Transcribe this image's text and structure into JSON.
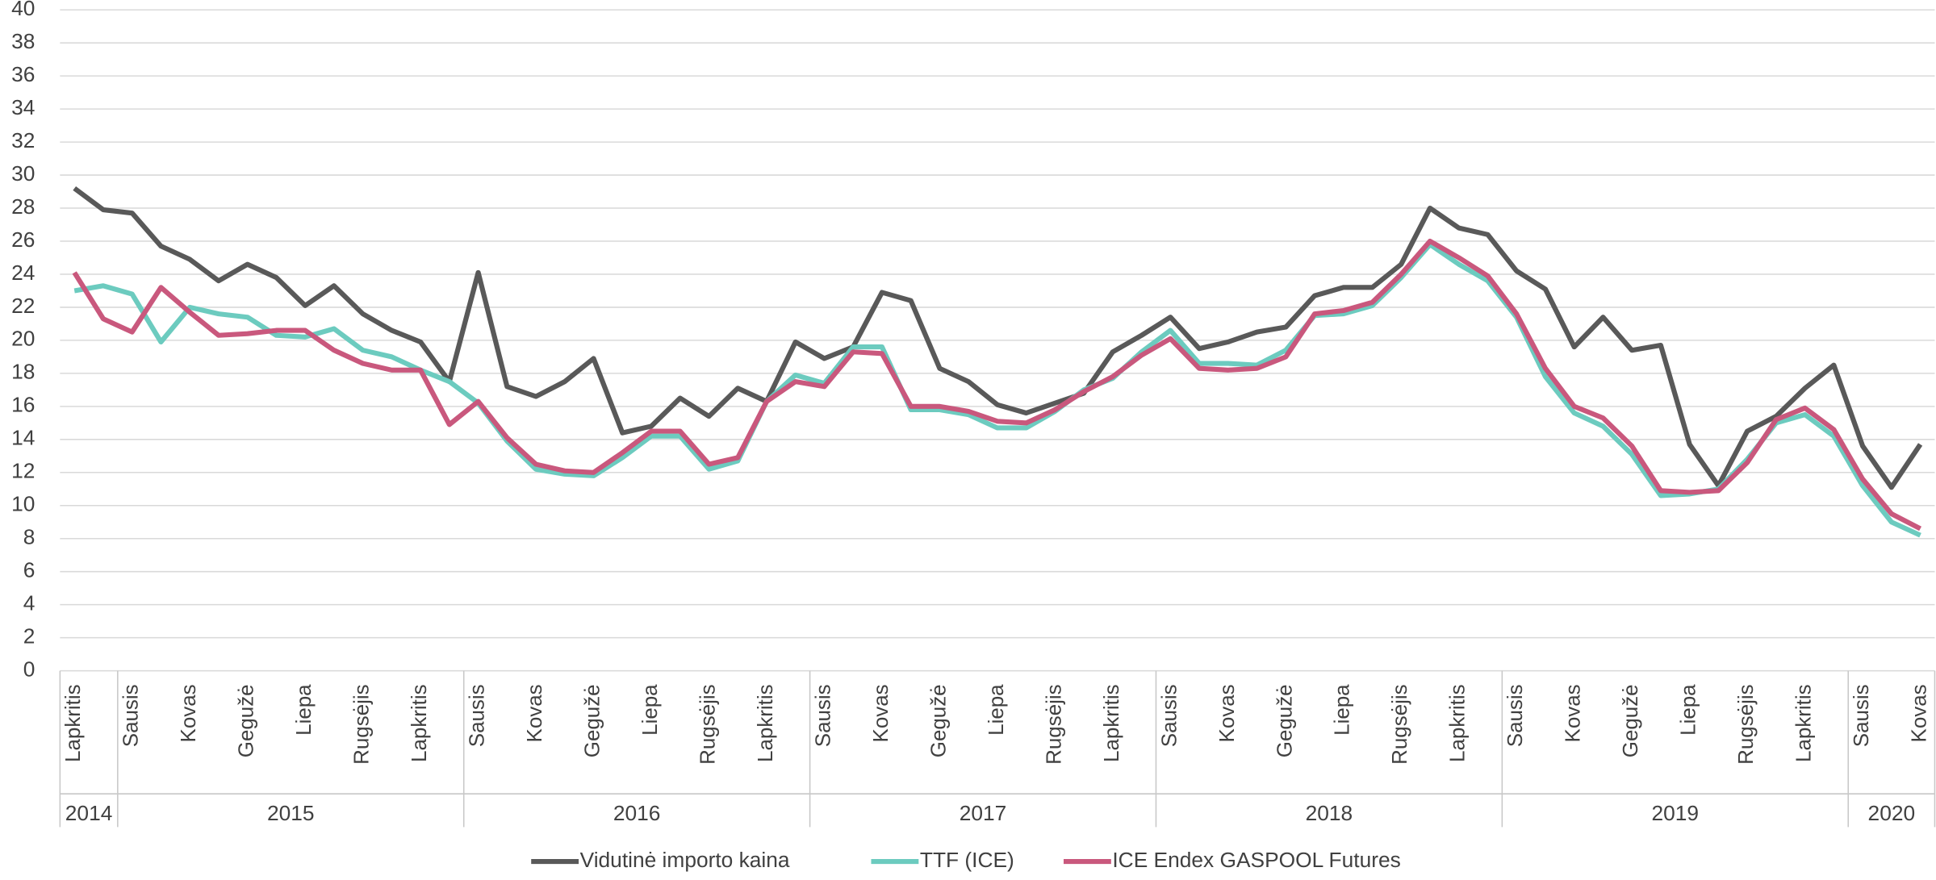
{
  "chart_data": {
    "type": "line",
    "categories": [
      "Lapkritis",
      null,
      "Sausis",
      null,
      "Kovas",
      null,
      "Gegužė",
      null,
      "Liepa",
      null,
      "Rugsėjis",
      null,
      "Lapkritis",
      null,
      "Sausis",
      null,
      "Kovas",
      null,
      "Gegužė",
      null,
      "Liepa",
      null,
      "Rugsėjis",
      null,
      "Lapkritis",
      null,
      "Sausis",
      null,
      "Kovas",
      null,
      "Gegužė",
      null,
      "Liepa",
      null,
      "Rugsėjis",
      null,
      "Lapkritis",
      null,
      "Sausis",
      null,
      "Kovas",
      null,
      "Gegužė",
      null,
      "Liepa",
      null,
      "Rugsėjis",
      null,
      "Lapkritis",
      null,
      "Sausis",
      null,
      "Kovas",
      null,
      "Gegužė",
      null,
      "Liepa",
      null,
      "Rugsėjis",
      null,
      "Lapkritis",
      null,
      "Sausis",
      null,
      "Kovas"
    ],
    "year_groups": [
      {
        "label": "2014",
        "span": 2
      },
      {
        "label": "2015",
        "span": 12
      },
      {
        "label": "2016",
        "span": 12
      },
      {
        "label": "2017",
        "span": 12
      },
      {
        "label": "2018",
        "span": 12
      },
      {
        "label": "2019",
        "span": 12
      },
      {
        "label": "2020",
        "span": 3
      }
    ],
    "series": [
      {
        "name": "Vidutinė importo kaina",
        "color": "#595959",
        "values": [
          29.2,
          27.9,
          27.7,
          25.7,
          24.9,
          23.6,
          24.6,
          23.8,
          22.1,
          23.3,
          21.6,
          20.6,
          19.9,
          17.5,
          24.1,
          17.2,
          16.6,
          17.5,
          18.9,
          14.4,
          14.8,
          16.5,
          15.4,
          17.1,
          16.3,
          19.9,
          18.9,
          19.6,
          22.9,
          22.4,
          18.3,
          17.5,
          16.1,
          15.6,
          16.2,
          16.8,
          19.3,
          20.3,
          21.4,
          19.5,
          19.9,
          20.5,
          20.8,
          22.7,
          23.2,
          23.2,
          24.6,
          28.0,
          26.8,
          26.4,
          24.2,
          23.1,
          19.6,
          21.4,
          19.4,
          19.7,
          13.7,
          11.2,
          14.5,
          15.4,
          17.1,
          18.5,
          13.6,
          11.1,
          13.7
        ]
      },
      {
        "name": "TTF (ICE)",
        "color": "#6ccbbf",
        "values": [
          23.0,
          23.3,
          22.8,
          19.9,
          22.0,
          21.6,
          21.4,
          20.3,
          20.2,
          20.7,
          19.4,
          19.0,
          18.2,
          17.5,
          16.2,
          13.9,
          12.2,
          11.9,
          11.8,
          12.9,
          14.2,
          14.2,
          12.2,
          12.7,
          16.3,
          17.9,
          17.4,
          19.6,
          19.6,
          15.8,
          15.8,
          15.5,
          14.7,
          14.7,
          15.7,
          17.0,
          17.7,
          19.3,
          20.6,
          18.6,
          18.6,
          18.5,
          19.4,
          21.5,
          21.6,
          22.1,
          23.8,
          25.8,
          24.6,
          23.6,
          21.4,
          17.8,
          15.6,
          14.8,
          13.1,
          10.6,
          10.7,
          11.0,
          12.8,
          15.0,
          15.5,
          14.2,
          11.2,
          9.0,
          8.2
        ]
      },
      {
        "name": "ICE Endex GASPOOL Futures",
        "color": "#c9587d",
        "values": [
          24.1,
          21.3,
          20.5,
          23.2,
          21.7,
          20.3,
          20.4,
          20.6,
          20.6,
          19.4,
          18.6,
          18.2,
          18.2,
          14.9,
          16.3,
          14.1,
          12.5,
          12.1,
          12.0,
          13.2,
          14.5,
          14.5,
          12.5,
          12.9,
          16.3,
          17.5,
          17.2,
          19.3,
          19.2,
          16.0,
          16.0,
          15.7,
          15.1,
          15.0,
          15.8,
          16.9,
          17.8,
          19.1,
          20.1,
          18.3,
          18.2,
          18.3,
          19.0,
          21.6,
          21.8,
          22.3,
          24.0,
          26.0,
          25.0,
          23.9,
          21.6,
          18.3,
          16.0,
          15.3,
          13.6,
          10.9,
          10.8,
          10.9,
          12.6,
          15.2,
          15.9,
          14.6,
          11.6,
          9.5,
          8.6
        ]
      }
    ],
    "ylim": [
      0,
      40
    ],
    "yticks": [
      0,
      2,
      4,
      6,
      8,
      10,
      12,
      14,
      16,
      18,
      20,
      22,
      24,
      26,
      28,
      30,
      32,
      34,
      36,
      38,
      40
    ],
    "grid": true,
    "legend": "bottom"
  }
}
